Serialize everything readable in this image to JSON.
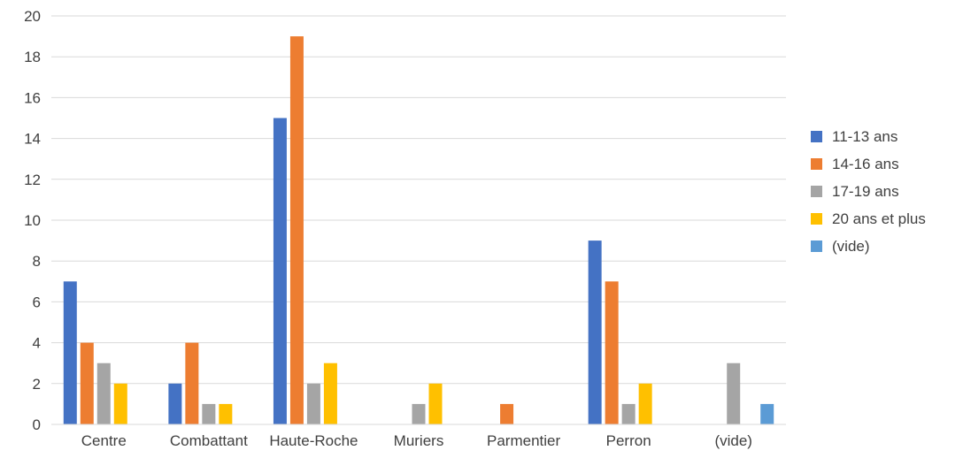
{
  "chart_data": {
    "type": "bar",
    "categories": [
      "Centre",
      "Combattant",
      "Haute-Roche",
      "Muriers",
      "Parmentier",
      "Perron",
      "(vide)"
    ],
    "series": [
      {
        "name": "11-13 ans",
        "color": "#4472C4",
        "values": [
          7,
          2,
          15,
          0,
          0,
          9,
          0
        ]
      },
      {
        "name": "14-16 ans",
        "color": "#ED7D31",
        "values": [
          4,
          4,
          19,
          0,
          1,
          7,
          0
        ]
      },
      {
        "name": "17-19 ans",
        "color": "#A5A5A5",
        "values": [
          3,
          1,
          2,
          1,
          0,
          1,
          3
        ]
      },
      {
        "name": "20 ans et plus",
        "color": "#FFC000",
        "values": [
          2,
          1,
          3,
          2,
          0,
          2,
          0
        ]
      },
      {
        "name": "(vide)",
        "color": "#5B9BD5",
        "values": [
          0,
          0,
          0,
          0,
          0,
          0,
          1
        ]
      }
    ],
    "yticks": [
      "0",
      "2",
      "4",
      "6",
      "8",
      "10",
      "12",
      "14",
      "16",
      "18",
      "20"
    ],
    "ylim": [
      0,
      20
    ],
    "grid": true,
    "legend_position": "right"
  }
}
